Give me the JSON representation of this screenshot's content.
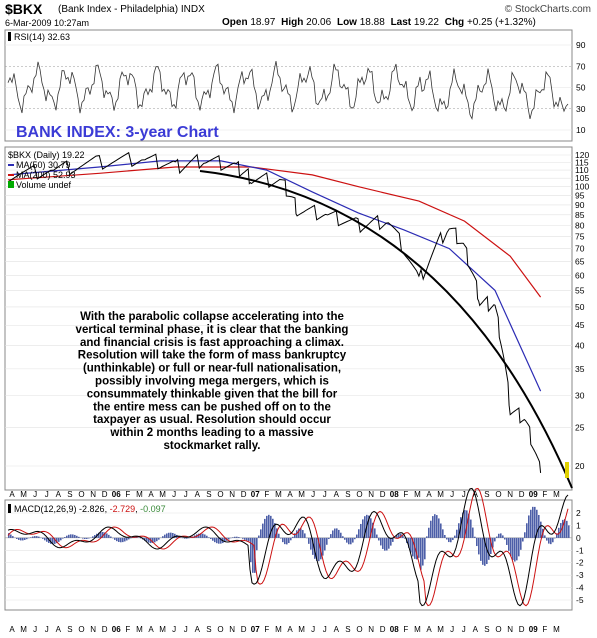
{
  "header": {
    "symbol": "$BKX",
    "description": "(Bank Index - Philadelphia)  INDX",
    "date": "6-Mar-2009 10:27am",
    "copyright": "© StockCharts.com",
    "open_label": "Open",
    "open": "18.97",
    "high_label": "High",
    "high": "20.06",
    "low_label": "Low",
    "low": "18.88",
    "last_label": "Last",
    "last": "19.22",
    "chg_label": "Chg",
    "chg": "+0.25 (+1.32%)"
  },
  "rsi": {
    "label": "RSI(14) 32.63",
    "ticks": [
      10,
      30,
      50,
      70,
      90
    ],
    "levels": [
      30,
      70
    ]
  },
  "price": {
    "title": "BANK INDEX: 3-year Chart",
    "legend": [
      {
        "label": "$BKX (Daily) 19.22",
        "color": "#000000"
      },
      {
        "label": "MA(50) 30.79",
        "color": "#2c2cb4"
      },
      {
        "label": "MA(200) 52.93",
        "color": "#cc1111"
      },
      {
        "label": "Volume undef",
        "color": "#007700"
      }
    ],
    "ticks": [
      120,
      115,
      110,
      105,
      100,
      95,
      90,
      85,
      80,
      75,
      70,
      65,
      60,
      55,
      50,
      45,
      40,
      35,
      30,
      25,
      20
    ],
    "annotation": [
      "With the parabolic collapse accelerating into the",
      "vertical terminal phase, it is clear that the banking",
      "and financial crisis is fast approaching a climax.",
      "Resolution will take the form of mass bankruptcy",
      "(unthinkable) or full or near-full nationalisation,",
      "possibly involving mega mergers, which is",
      "consummately thinkable given that the bill for",
      "the entire mess can be pushed off on to the",
      "taxpayer as usual. Resolution should occur",
      "within 2 months leading to a massive",
      "stockmarket rally."
    ]
  },
  "macd": {
    "label": "MACD(12,26,9)",
    "macd": "-2.826",
    "signal": "-2.729",
    "hist": "-0.097",
    "ticks": [
      2,
      1,
      0,
      -1,
      -2,
      -3,
      -4,
      -5
    ]
  },
  "x_axis": {
    "months": [
      "A",
      "M",
      "J",
      "J",
      "A",
      "S",
      "O",
      "N",
      "D",
      "06",
      "F",
      "M",
      "A",
      "M",
      "J",
      "J",
      "A",
      "S",
      "O",
      "N",
      "D",
      "07",
      "F",
      "M",
      "A",
      "M",
      "J",
      "J",
      "A",
      "S",
      "O",
      "N",
      "D",
      "08",
      "F",
      "M",
      "A",
      "M",
      "J",
      "J",
      "A",
      "S",
      "O",
      "N",
      "D",
      "09",
      "F",
      "M"
    ]
  },
  "chart_data": {
    "type": "line",
    "title": "BANK INDEX: 3-year Chart",
    "x_range": [
      "Apr 2006",
      "Mar 2009"
    ],
    "y_range": [
      18,
      125
    ],
    "y_scale": "log",
    "series": [
      {
        "name": "$BKX (Daily)",
        "last": 19.22,
        "x": [
          "2006-04",
          "2006-07",
          "2006-10",
          "2007-01",
          "2007-03",
          "2007-05",
          "2007-07",
          "2007-08",
          "2007-10",
          "2007-11",
          "2008-01",
          "2008-03",
          "2008-05",
          "2008-07",
          "2008-09",
          "2008-10",
          "2008-11",
          "2008-12",
          "2009-01",
          "2009-02",
          "2009-03"
        ],
        "y": [
          107,
          110,
          115,
          118,
          112,
          117,
          112,
          105,
          103,
          88,
          85,
          80,
          82,
          58,
          80,
          70,
          52,
          50,
          28,
          26,
          19.22
        ]
      },
      {
        "name": "MA(50)",
        "last": 30.79,
        "x": [
          "2006-04",
          "2006-10",
          "2007-02",
          "2007-06",
          "2007-09",
          "2007-12",
          "2008-03",
          "2008-06",
          "2008-09",
          "2008-12",
          "2009-03"
        ],
        "y": [
          107,
          112,
          116,
          116,
          110,
          97,
          86,
          78,
          70,
          55,
          30.79
        ]
      },
      {
        "name": "MA(200)",
        "last": 52.93,
        "x": [
          "2006-04",
          "2006-10",
          "2007-03",
          "2007-08",
          "2007-12",
          "2008-03",
          "2008-07",
          "2008-10",
          "2009-01",
          "2009-03"
        ],
        "y": [
          104,
          108,
          112,
          112,
          107,
          100,
          92,
          82,
          67,
          52.93
        ]
      }
    ],
    "macd": {
      "name": "MACD(12,26,9)",
      "macd": -2.826,
      "signal": -2.729,
      "hist": -0.097
    },
    "rsi": {
      "name": "RSI(14)",
      "value": 32.63
    }
  }
}
